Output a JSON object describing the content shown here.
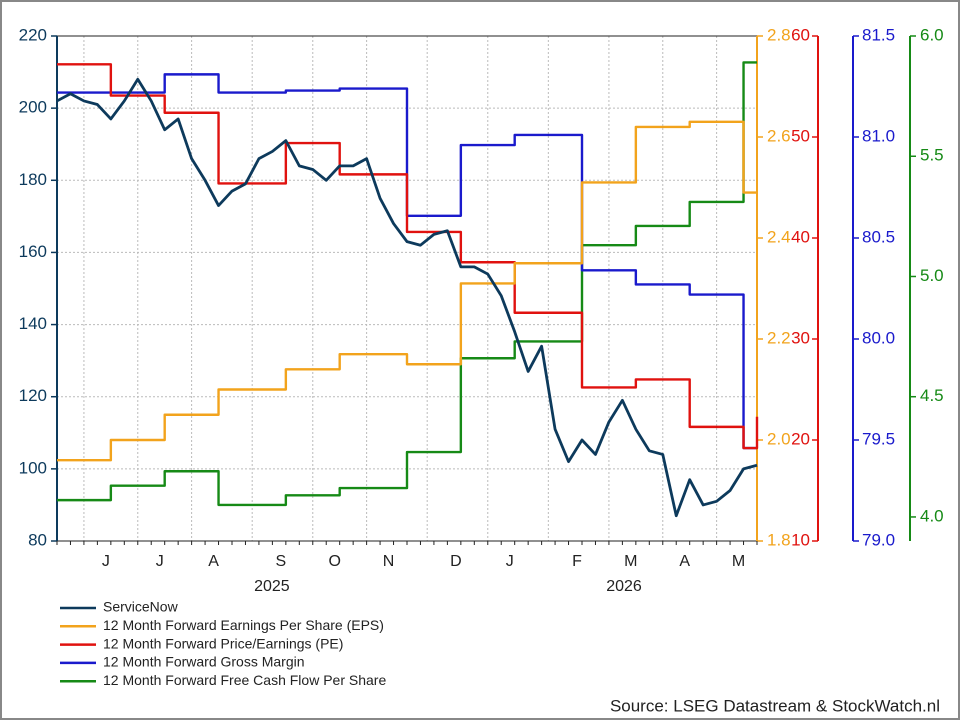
{
  "chart_data": {
    "type": "line",
    "categories": [
      null,
      null,
      null,
      null,
      "J",
      null,
      null,
      null,
      "J",
      null,
      null,
      null,
      "A",
      null,
      null,
      null,
      null,
      "S",
      null,
      null,
      null,
      "O",
      null,
      null,
      null,
      "N",
      null,
      null,
      null,
      null,
      "D",
      null,
      null,
      null,
      "J",
      null,
      null,
      null,
      null,
      "F",
      null,
      null,
      null,
      "M",
      null,
      null,
      null,
      "A",
      null,
      null,
      null,
      "M",
      null
    ],
    "years": [
      "2025",
      "2026"
    ],
    "ylim": [
      80,
      220
    ],
    "yticks": [
      80,
      100,
      120,
      140,
      160,
      180,
      200,
      220
    ],
    "y2lim": [
      1.8,
      2.8
    ],
    "y2ticks": [
      1.8,
      {
        "value": 2,
        "label": "2.0"
      },
      2.2,
      2.4,
      2.6,
      2.8
    ],
    "y3lim": [
      10,
      60
    ],
    "y3ticks": [
      10,
      20,
      30,
      40,
      50,
      60
    ],
    "y4lim": [
      79,
      81.5
    ],
    "y4ticks": [
      {
        "value": 79,
        "label": "79.0"
      },
      79.5,
      {
        "value": 80,
        "label": "80.0"
      },
      80.5,
      {
        "value": 81,
        "label": "81.0"
      },
      81.5
    ],
    "y5lim": [
      3.9,
      6
    ],
    "y5ticks": [
      {
        "value": 4,
        "label": "4.0"
      },
      4.5,
      {
        "value": 5,
        "label": "5.0"
      },
      5.5,
      {
        "value": 6,
        "label": "6.0"
      }
    ],
    "grid": true,
    "series": [
      {
        "name": "ServiceNow",
        "color": "#0d3a5c",
        "axis": "y",
        "values": [
          202,
          204,
          202,
          201,
          197,
          202,
          208,
          202,
          194,
          197,
          186,
          180,
          173,
          177,
          179,
          186,
          188,
          191,
          184,
          183,
          180,
          184,
          184,
          186,
          175,
          168,
          163,
          162,
          165,
          166,
          156,
          156,
          154,
          148,
          138,
          127,
          134,
          111,
          102,
          108,
          104,
          113,
          119,
          111,
          105,
          104,
          87,
          97,
          90,
          91,
          94,
          100,
          101
        ]
      },
      {
        "name": "12 Month Forward Earnings Per Share (EPS)",
        "color": "#f2a31c",
        "axis": "y2",
        "step": true,
        "values": [
          1.96,
          1.96,
          1.96,
          1.96,
          2.0,
          2.0,
          2.0,
          2.0,
          2.05,
          2.05,
          2.05,
          2.05,
          2.1,
          2.1,
          2.1,
          2.1,
          2.1,
          2.14,
          2.14,
          2.14,
          2.14,
          2.17,
          2.17,
          2.17,
          2.17,
          2.17,
          2.15,
          2.15,
          2.15,
          2.15,
          2.31,
          2.31,
          2.31,
          2.31,
          2.35,
          2.35,
          2.35,
          2.35,
          2.35,
          2.51,
          2.51,
          2.51,
          2.51,
          2.62,
          2.62,
          2.62,
          2.62,
          2.63,
          2.63,
          2.63,
          2.63,
          2.49,
          2.49
        ]
      },
      {
        "name": "12 Month Forward Price/Earnings (PE)",
        "color": "#e0120f",
        "axis": "y3",
        "step": true,
        "values": [
          57.2,
          57.2,
          57.2,
          57.2,
          54.1,
          54.1,
          54.1,
          54.1,
          52.4,
          52.4,
          52.4,
          52.4,
          45.4,
          45.4,
          45.4,
          45.4,
          45.4,
          49.4,
          49.4,
          49.4,
          49.4,
          46.3,
          46.3,
          46.3,
          46.3,
          46.3,
          40.6,
          40.6,
          40.6,
          40.6,
          37.6,
          37.6,
          37.6,
          37.6,
          32.6,
          32.6,
          32.6,
          32.6,
          32.6,
          25.2,
          25.2,
          25.2,
          25.2,
          26.0,
          26.0,
          26.0,
          26.0,
          21.3,
          21.3,
          21.3,
          21.3,
          19.2,
          22.3
        ]
      },
      {
        "name": "12 Month Forward Gross Margin",
        "color": "#1a1acc",
        "axis": "y4",
        "step": true,
        "values": [
          81.22,
          81.22,
          81.22,
          81.22,
          81.22,
          81.22,
          81.22,
          81.22,
          81.31,
          81.31,
          81.31,
          81.31,
          81.22,
          81.22,
          81.22,
          81.22,
          81.22,
          81.23,
          81.23,
          81.23,
          81.23,
          81.24,
          81.24,
          81.24,
          81.24,
          81.24,
          80.61,
          80.61,
          80.61,
          80.61,
          80.96,
          80.96,
          80.96,
          80.96,
          81.01,
          81.01,
          81.01,
          81.01,
          81.01,
          80.34,
          80.34,
          80.34,
          80.34,
          80.27,
          80.27,
          80.27,
          80.27,
          80.22,
          80.22,
          80.22,
          80.22,
          79.46,
          79.46
        ]
      },
      {
        "name": "12 Month Forward Free Cash Flow Per Share",
        "color": "#168a16",
        "axis": "y5",
        "step": true,
        "values": [
          4.07,
          4.07,
          4.07,
          4.07,
          4.13,
          4.13,
          4.13,
          4.13,
          4.19,
          4.19,
          4.19,
          4.19,
          4.05,
          4.05,
          4.05,
          4.05,
          4.05,
          4.09,
          4.09,
          4.09,
          4.09,
          4.12,
          4.12,
          4.12,
          4.12,
          4.12,
          4.27,
          4.27,
          4.27,
          4.27,
          4.66,
          4.66,
          4.66,
          4.66,
          4.73,
          4.73,
          4.73,
          4.73,
          4.73,
          5.13,
          5.13,
          5.13,
          5.13,
          5.21,
          5.21,
          5.21,
          5.21,
          5.31,
          5.31,
          5.31,
          5.31,
          5.89,
          5.89
        ]
      }
    ],
    "source": "Source: LSEG Datastream & StockWatch.nl"
  }
}
